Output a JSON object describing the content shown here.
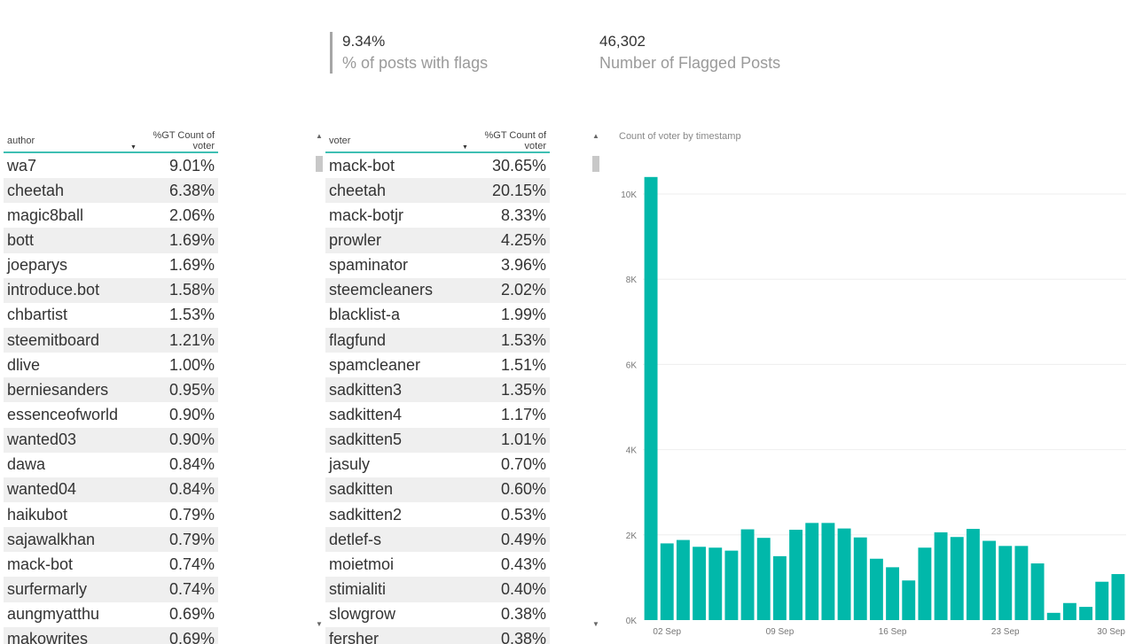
{
  "kpis": [
    {
      "value": "9.34%",
      "label": "% of posts with flags"
    },
    {
      "value": "46,302",
      "label": "Number of Flagged Posts"
    }
  ],
  "author_table": {
    "headers": [
      "author",
      "%GT Count of voter"
    ],
    "rows": [
      [
        "wa7",
        "9.01%"
      ],
      [
        "cheetah",
        "6.38%"
      ],
      [
        "magic8ball",
        "2.06%"
      ],
      [
        "bott",
        "1.69%"
      ],
      [
        "joeparys",
        "1.69%"
      ],
      [
        "introduce.bot",
        "1.58%"
      ],
      [
        "chbartist",
        "1.53%"
      ],
      [
        "steemitboard",
        "1.21%"
      ],
      [
        "dlive",
        "1.00%"
      ],
      [
        "berniesanders",
        "0.95%"
      ],
      [
        "essenceofworld",
        "0.90%"
      ],
      [
        "wanted03",
        "0.90%"
      ],
      [
        "dawa",
        "0.84%"
      ],
      [
        "wanted04",
        "0.84%"
      ],
      [
        "haikubot",
        "0.79%"
      ],
      [
        "sajawalkhan",
        "0.79%"
      ],
      [
        "mack-bot",
        "0.74%"
      ],
      [
        "surfermarly",
        "0.74%"
      ],
      [
        "aungmyatthu",
        "0.69%"
      ],
      [
        "makowrites",
        "0.69%"
      ]
    ]
  },
  "voter_table": {
    "headers": [
      "voter",
      "%GT Count of voter"
    ],
    "rows": [
      [
        "mack-bot",
        "30.65%"
      ],
      [
        "cheetah",
        "20.15%"
      ],
      [
        "mack-botjr",
        "8.33%"
      ],
      [
        "prowler",
        "4.25%"
      ],
      [
        "spaminator",
        "3.96%"
      ],
      [
        "steemcleaners",
        "2.02%"
      ],
      [
        "blacklist-a",
        "1.99%"
      ],
      [
        "flagfund",
        "1.53%"
      ],
      [
        "spamcleaner",
        "1.51%"
      ],
      [
        "sadkitten3",
        "1.35%"
      ],
      [
        "sadkitten4",
        "1.17%"
      ],
      [
        "sadkitten5",
        "1.01%"
      ],
      [
        "jasuly",
        "0.70%"
      ],
      [
        "sadkitten",
        "0.60%"
      ],
      [
        "sadkitten2",
        "0.53%"
      ],
      [
        "detlef-s",
        "0.49%"
      ],
      [
        "moietmoi",
        "0.43%"
      ],
      [
        "stimialiti",
        "0.40%"
      ],
      [
        "slowgrow",
        "0.38%"
      ],
      [
        "fersher",
        "0.38%"
      ]
    ]
  },
  "scroll_icons": {
    "up": "▲",
    "down": "▼"
  },
  "chart_data": {
    "type": "bar",
    "title": "Count of voter by timestamp",
    "color": "#01B8AA",
    "ylim": [
      0,
      10500
    ],
    "y_ticks": [
      0,
      2000,
      4000,
      6000,
      8000,
      10000
    ],
    "y_tick_labels": [
      "0K",
      "2K",
      "4K",
      "6K",
      "8K",
      "10K"
    ],
    "x_tick_labels": [
      "02 Sep",
      "09 Sep",
      "16 Sep",
      "23 Sep",
      "30 Sep"
    ],
    "categories": [
      "01 Sep",
      "02 Sep",
      "03 Sep",
      "04 Sep",
      "05 Sep",
      "06 Sep",
      "07 Sep",
      "08 Sep",
      "09 Sep",
      "10 Sep",
      "11 Sep",
      "12 Sep",
      "13 Sep",
      "14 Sep",
      "15 Sep",
      "16 Sep",
      "17 Sep",
      "18 Sep",
      "19 Sep",
      "20 Sep",
      "21 Sep",
      "22 Sep",
      "23 Sep",
      "24 Sep",
      "25 Sep",
      "26 Sep",
      "27 Sep",
      "28 Sep",
      "29 Sep",
      "30 Sep"
    ],
    "values": [
      10400,
      1800,
      1880,
      1720,
      1700,
      1630,
      2130,
      1930,
      1500,
      2120,
      2280,
      2280,
      2150,
      1940,
      1440,
      1240,
      930,
      1700,
      2060,
      1950,
      2140,
      1860,
      1740,
      1740,
      1330,
      170,
      400,
      310,
      900,
      1080
    ],
    "grid": true
  }
}
